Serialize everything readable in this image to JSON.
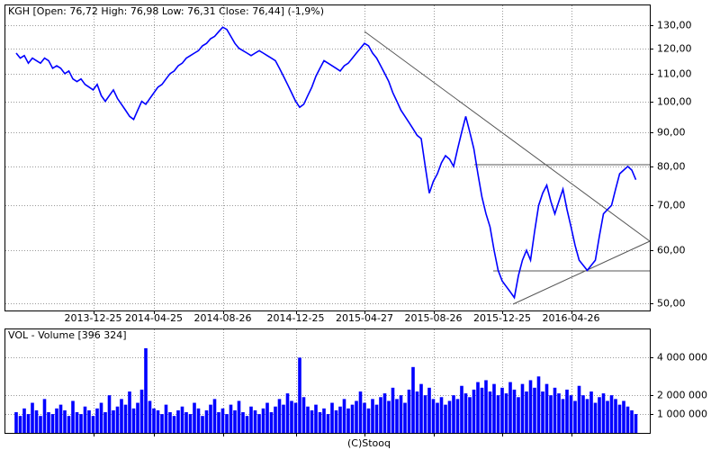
{
  "chart_data": [
    {
      "type": "line",
      "title": "KGH [Open: 76,72 High: 76,98 Low: 76,31 Close: 76,44] (-1,9%)",
      "categories": [
        null,
        null,
        null,
        null,
        null,
        null,
        null,
        null,
        null,
        null,
        null,
        null,
        null,
        null,
        null,
        null,
        null,
        null,
        null,
        "2013-12-25",
        null,
        null,
        null,
        null,
        null,
        null,
        null,
        null,
        null,
        null,
        null,
        null,
        null,
        null,
        "2014-04-25",
        null,
        null,
        null,
        null,
        null,
        null,
        null,
        null,
        null,
        null,
        null,
        null,
        null,
        null,
        null,
        null,
        "2014-08-26",
        null,
        null,
        null,
        null,
        null,
        null,
        null,
        null,
        null,
        null,
        null,
        null,
        null,
        null,
        null,
        null,
        null,
        "2014-12-25",
        null,
        null,
        null,
        null,
        null,
        null,
        null,
        null,
        null,
        null,
        null,
        null,
        null,
        null,
        null,
        null,
        "2015-04-27",
        null,
        null,
        null,
        null,
        null,
        null,
        null,
        null,
        null,
        null,
        null,
        null,
        null,
        null,
        null,
        null,
        "2015-08-26",
        null,
        null,
        null,
        null,
        null,
        null,
        null,
        null,
        null,
        null,
        null,
        null,
        null,
        null,
        null,
        null,
        "2015-12-25",
        null,
        null,
        null,
        null,
        null,
        null,
        null,
        null,
        null,
        null,
        null,
        null,
        null,
        null,
        null,
        null,
        "2016-04-26",
        null,
        null,
        null,
        null,
        null,
        null,
        null,
        null,
        null,
        null,
        null,
        null,
        null,
        null,
        null,
        null
      ],
      "values": [
        118,
        116,
        117,
        114,
        116,
        115,
        114,
        116,
        115,
        112,
        113,
        112,
        110,
        111,
        108,
        107,
        108,
        106,
        105,
        104,
        106,
        102,
        100,
        102,
        104,
        101,
        99,
        97,
        95,
        94,
        97,
        100,
        99,
        101,
        103,
        105,
        106,
        108,
        110,
        111,
        113,
        114,
        116,
        117,
        118,
        119,
        121,
        122,
        124,
        125,
        127,
        129,
        128,
        125,
        122,
        120,
        119,
        118,
        117,
        118,
        119,
        118,
        117,
        116,
        115,
        112,
        109,
        106,
        103,
        100,
        98,
        99,
        102,
        105,
        109,
        112,
        115,
        114,
        113,
        112,
        111,
        113,
        114,
        116,
        118,
        120,
        122,
        121,
        118,
        116,
        113,
        110,
        107,
        103,
        100,
        97,
        95,
        93,
        91,
        89,
        88,
        80,
        73,
        76,
        78,
        81,
        83,
        82,
        80,
        85,
        90,
        95,
        90,
        85,
        78,
        72,
        68,
        65,
        60,
        56,
        54,
        53,
        52,
        51,
        55,
        58,
        60,
        58,
        64,
        70,
        73,
        75,
        71,
        68,
        71,
        74,
        69,
        65,
        61,
        58,
        57,
        56,
        57,
        58,
        63,
        68,
        69,
        70,
        74,
        78,
        79,
        80,
        79,
        76.44
      ],
      "color": "#0000ff",
      "log_scale": true,
      "grid": true,
      "ylim": [
        48.8,
        139
      ],
      "yticks": [
        {
          "value": 50,
          "label": "50,00"
        },
        {
          "value": 60,
          "label": "60,00"
        },
        {
          "value": 70,
          "label": "70,00"
        },
        {
          "value": 80,
          "label": "80,00"
        },
        {
          "value": 90,
          "label": "90,00"
        },
        {
          "value": 100,
          "label": "100,00"
        },
        {
          "value": 110,
          "label": "110,00"
        },
        {
          "value": 120,
          "label": "120,00"
        },
        {
          "value": 130,
          "label": "130,00"
        }
      ]
    },
    {
      "type": "bar",
      "title": "VOL - Volume [396 324]",
      "values": [
        1100000,
        900000,
        1300000,
        1000000,
        1600000,
        1200000,
        900000,
        1800000,
        1100000,
        1000000,
        1300000,
        1500000,
        1200000,
        900000,
        1700000,
        1100000,
        1000000,
        1400000,
        1200000,
        900000,
        1300000,
        1600000,
        1100000,
        2000000,
        1200000,
        1400000,
        1800000,
        1500000,
        2200000,
        1300000,
        1600000,
        2300000,
        4500000,
        1700000,
        1300000,
        1200000,
        1000000,
        1500000,
        1100000,
        900000,
        1200000,
        1400000,
        1100000,
        1000000,
        1600000,
        1300000,
        900000,
        1200000,
        1500000,
        1800000,
        1100000,
        1300000,
        1000000,
        1500000,
        1200000,
        1700000,
        1100000,
        900000,
        1400000,
        1200000,
        1000000,
        1300000,
        1600000,
        1100000,
        1400000,
        1800000,
        1500000,
        2100000,
        1700000,
        1600000,
        4000000,
        1900000,
        1400000,
        1200000,
        1500000,
        1100000,
        1300000,
        1000000,
        1600000,
        1200000,
        1400000,
        1800000,
        1300000,
        1500000,
        1700000,
        2200000,
        1600000,
        1300000,
        1800000,
        1500000,
        1900000,
        2100000,
        1700000,
        2400000,
        1800000,
        2000000,
        1600000,
        2300000,
        3500000,
        2200000,
        2600000,
        2000000,
        2400000,
        1800000,
        1600000,
        1900000,
        1500000,
        1700000,
        2000000,
        1800000,
        2500000,
        2100000,
        1900000,
        2300000,
        2700000,
        2400000,
        2800000,
        2200000,
        2600000,
        2000000,
        2400000,
        2100000,
        2700000,
        2300000,
        1900000,
        2600000,
        2200000,
        2800000,
        2400000,
        3000000,
        2200000,
        2600000,
        2000000,
        2400000,
        2100000,
        1800000,
        2300000,
        2000000,
        1700000,
        2500000,
        2000000,
        1800000,
        2200000,
        1600000,
        1900000,
        2100000,
        1700000,
        2000000,
        1800000,
        1500000,
        1700000,
        1400000,
        1200000,
        1000000
      ],
      "color": "#0000ff",
      "grid": true,
      "ylim": [
        0,
        5500000
      ],
      "yticks": [
        {
          "value": 1000000,
          "label": "1 000 000"
        },
        {
          "value": 2000000,
          "label": "2 000 000"
        },
        {
          "value": 4000000,
          "label": "4 000 000"
        }
      ]
    }
  ],
  "source": "(C)Stooq"
}
